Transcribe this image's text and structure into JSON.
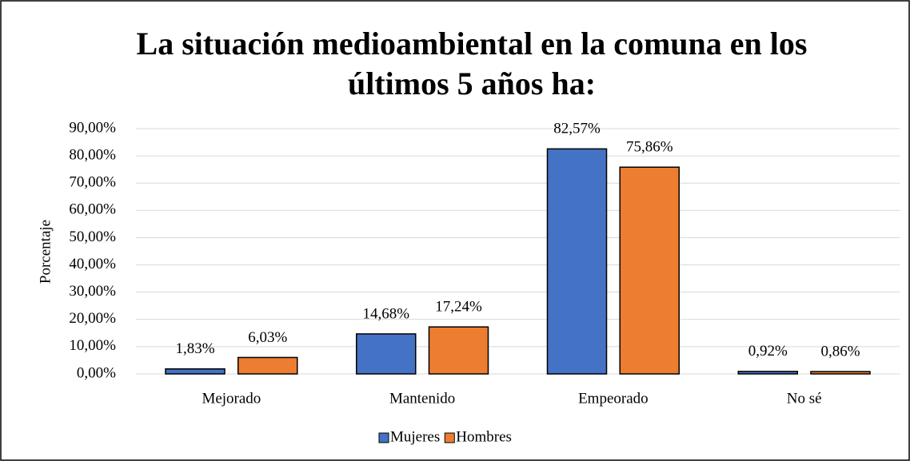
{
  "chart_data": {
    "type": "bar",
    "title": "La situación medioambiental en la comuna en los últimos 5 años ha:",
    "y_label": "Porcentaje",
    "categories": [
      "Mejorado",
      "Mantenido",
      "Empeorado",
      "No sé"
    ],
    "series": [
      {
        "name": "Mujeres",
        "color": "#4472c4",
        "values": [
          1.83,
          14.68,
          82.57,
          0.92
        ],
        "value_labels": [
          "1,83%",
          "14,68%",
          "82,57%",
          "0,92%"
        ]
      },
      {
        "name": "Hombres",
        "color": "#ed7d31",
        "values": [
          6.03,
          17.24,
          75.86,
          0.86
        ],
        "value_labels": [
          "6,03%",
          "17,24%",
          "75,86%",
          "0,86%"
        ]
      }
    ],
    "ylim": [
      0,
      90
    ],
    "yticks": [
      {
        "value": 0,
        "label": "0,00%"
      },
      {
        "value": 10,
        "label": "10,00%"
      },
      {
        "value": 20,
        "label": "20,00%"
      },
      {
        "value": 30,
        "label": "30,00%"
      },
      {
        "value": 40,
        "label": "40,00%"
      },
      {
        "value": 50,
        "label": "50,00%"
      },
      {
        "value": 60,
        "label": "60,00%"
      },
      {
        "value": 70,
        "label": "70,00%"
      },
      {
        "value": 80,
        "label": "80,00%"
      },
      {
        "value": 90,
        "label": "90,00%"
      }
    ],
    "grid": true,
    "legend": "bottom"
  }
}
